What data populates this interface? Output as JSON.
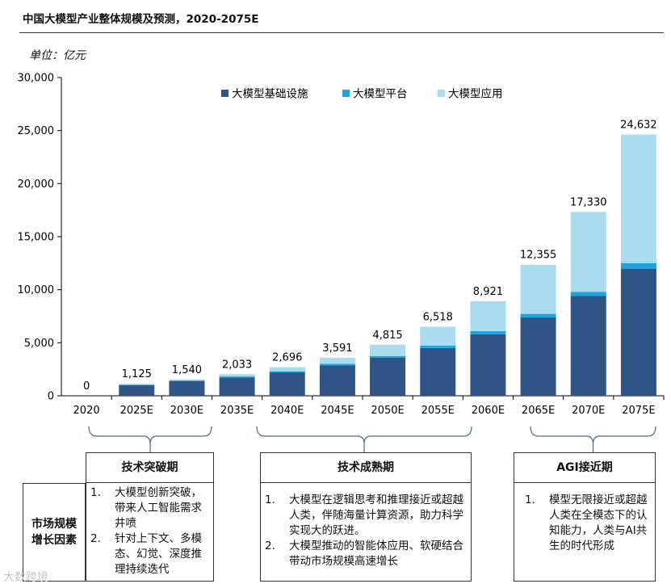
{
  "title": "中国大模型产业整体规模及预测，2020-2075E",
  "unit": "单位：亿元",
  "chart_data": {
    "type": "bar",
    "stacked": true,
    "categories": [
      "2020",
      "2025E",
      "2030E",
      "2035E",
      "2040E",
      "2045E",
      "2050E",
      "2055E",
      "2060E",
      "2065E",
      "2070E",
      "2075E"
    ],
    "series": [
      {
        "name": "大模型基础设施",
        "color": "#2f5486",
        "values": [
          0,
          1000,
          1380,
          1730,
          2200,
          2860,
          3580,
          4500,
          5800,
          7380,
          9410,
          11980
        ]
      },
      {
        "name": "大模型平台",
        "color": "#1ca3e0",
        "values": [
          0,
          40,
          60,
          90,
          110,
          150,
          170,
          220,
          300,
          340,
          390,
          530
        ]
      },
      {
        "name": "大模型应用",
        "color": "#a9dcee",
        "values": [
          0,
          85,
          100,
          213,
          386,
          581,
          1065,
          1798,
          2821,
          4635,
          7530,
          12122
        ]
      }
    ],
    "totals": [
      "0",
      "1,125",
      "1,540",
      "2,033",
      "2,696",
      "3,591",
      "4,815",
      "6,518",
      "8,921",
      "12,355",
      "17,330",
      "24,632"
    ],
    "totals_values": [
      0,
      1125,
      1540,
      2033,
      2696,
      3591,
      4815,
      6518,
      8921,
      12355,
      17330,
      24632
    ],
    "ylim": [
      0,
      30000
    ],
    "yticks": [
      0,
      5000,
      10000,
      15000,
      20000,
      25000,
      30000
    ],
    "ytick_labels": [
      "0",
      "5,000",
      "10,000",
      "15,000",
      "20,000",
      "25,000",
      "30,000"
    ],
    "legend_position": "top"
  },
  "factors_label": "市场规模\n增长因素",
  "phases": [
    {
      "title": "技术突破期",
      "items": [
        {
          "num": "1.",
          "text": "大模型创新突破，带来人工智能需求井喷"
        },
        {
          "num": "2.",
          "text": "针对上下文、多模态、幻觉、深度推理持续迭代"
        }
      ]
    },
    {
      "title": "技术成熟期",
      "items": [
        {
          "num": "1.",
          "text": "大模型在逻辑思考和推理接近或超越人类，伴随海量计算资源，助力科学实现大的跃进。"
        },
        {
          "num": "2.",
          "text": "大模型推动的智能体应用、软硬结合带动市场规模高速增长"
        }
      ]
    },
    {
      "title": "AGI接近期",
      "items": [
        {
          "num": "1.",
          "text": "模型无限接近或超越人类在全模态下的认知能力，人类与AI共生的时代形成"
        }
      ]
    }
  ],
  "watermark": "大数跨境"
}
